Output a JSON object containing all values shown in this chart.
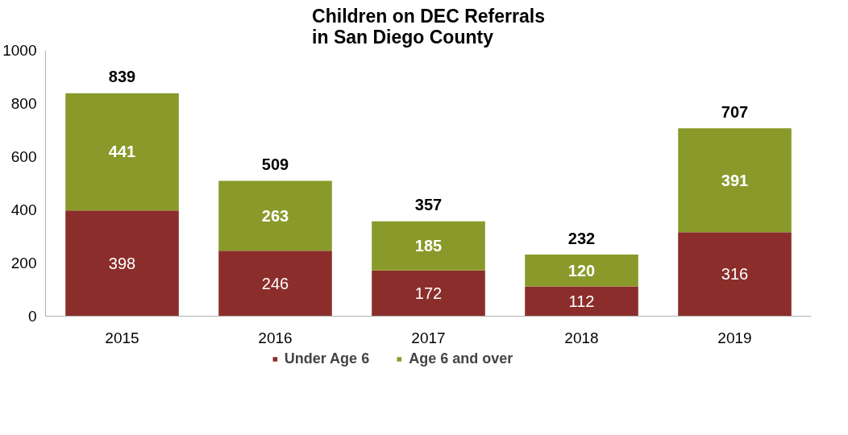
{
  "chart_data": {
    "type": "bar",
    "title": "Children on DEC Referrals in San Diego County",
    "categories": [
      "2015",
      "2016",
      "2017",
      "2018",
      "2019"
    ],
    "stacked": true,
    "series": [
      {
        "name": "Under Age 6",
        "color": "#8b2e2b",
        "values": [
          398,
          246,
          172,
          112,
          316
        ]
      },
      {
        "name": "Age 6 and over",
        "color": "#8a9a2a",
        "values": [
          441,
          263,
          185,
          120,
          391
        ]
      }
    ],
    "data_labels": true,
    "totals": [
      "839",
      "509",
      "357",
      "232",
      "707"
    ],
    "ylim": [
      0,
      1000
    ],
    "yticks": [
      0,
      200,
      400,
      600,
      800,
      1000
    ],
    "grid": false,
    "legend": "bottom"
  }
}
